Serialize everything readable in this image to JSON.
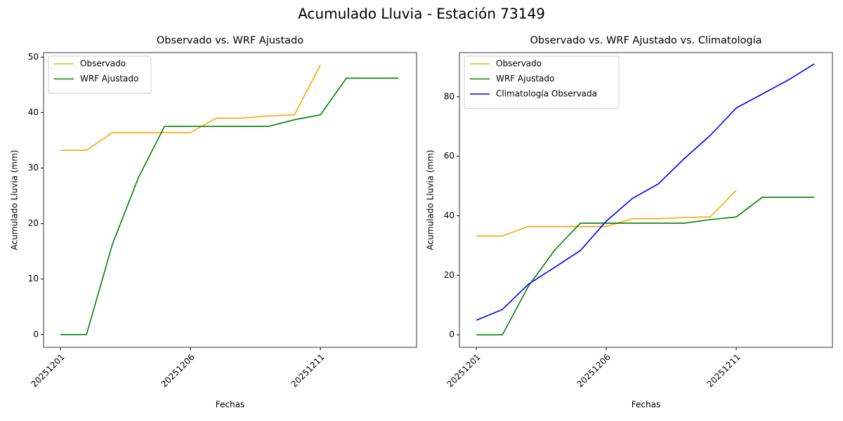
{
  "title": "Acumulado Lluvia - Estación 73149",
  "chart_data": [
    {
      "type": "line",
      "title": "Observado vs. WRF Ajustado",
      "x_label": "Fechas",
      "y_label": "Acumulado Lluvia (mm)",
      "categories": [
        "20251201",
        null,
        null,
        null,
        null,
        "20251206",
        null,
        null,
        null,
        null,
        "20251211",
        null,
        null,
        null
      ],
      "series": [
        {
          "name": "Observado",
          "color": "#ffa500",
          "values": [
            33.2,
            33.2,
            36.4,
            36.4,
            36.4,
            36.4,
            39.0,
            39.0,
            39.4,
            39.6,
            48.6,
            null,
            null,
            null
          ]
        },
        {
          "name": "WRF Ajustado",
          "color": "#008000",
          "values": [
            0,
            0,
            16.3,
            28.3,
            37.5,
            37.5,
            37.5,
            37.5,
            37.5,
            38.7,
            39.6,
            46.2,
            46.2,
            46.2
          ]
        }
      ],
      "ylim": [
        -2.3,
        50.8
      ],
      "yticks": [
        0,
        10,
        20,
        30,
        40,
        50
      ],
      "legend": "upper left"
    },
    {
      "type": "line",
      "title": "Observado vs. WRF Ajustado vs. Climatología",
      "x_label": "Fechas",
      "y_label": "Acumulado Lluvia (mm)",
      "categories": [
        "20251201",
        null,
        null,
        null,
        null,
        "20251206",
        null,
        null,
        null,
        null,
        "20251211",
        null,
        null,
        null
      ],
      "series": [
        {
          "name": "Observado",
          "color": "#ffa500",
          "values": [
            33.2,
            33.2,
            36.4,
            36.4,
            36.4,
            36.4,
            39.0,
            39.0,
            39.4,
            39.6,
            48.6,
            null,
            null,
            null
          ]
        },
        {
          "name": "WRF Ajustado",
          "color": "#008000",
          "values": [
            0,
            0,
            16.3,
            28.3,
            37.5,
            37.5,
            37.5,
            37.5,
            37.5,
            38.7,
            39.6,
            46.2,
            46.2,
            46.2
          ]
        },
        {
          "name": "Climatología Observada",
          "color": "#0000ff",
          "values": [
            4.9,
            8.5,
            17.0,
            22.6,
            28.3,
            38.2,
            45.8,
            50.7,
            59.2,
            67.0,
            76.2,
            80.9,
            85.6,
            91.0
          ]
        }
      ],
      "ylim": [
        -4.2,
        94.8
      ],
      "yticks": [
        0,
        20,
        40,
        60,
        80
      ],
      "legend": "upper left"
    }
  ]
}
